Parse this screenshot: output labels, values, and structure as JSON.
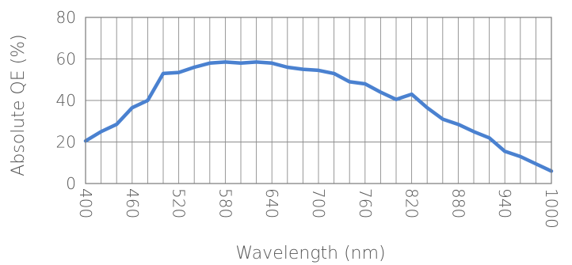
{
  "chart_data": {
    "type": "line",
    "title": "",
    "xlabel": "Wavelength (nm)",
    "ylabel": "Absolute QE (%)",
    "xlim": [
      400,
      1000
    ],
    "ylim": [
      0,
      80
    ],
    "x_ticks": [
      400,
      460,
      520,
      580,
      640,
      700,
      760,
      820,
      880,
      940,
      1000
    ],
    "x_tick_labels": [
      "400",
      "460",
      "520",
      "580",
      "640",
      "700",
      "760",
      "820",
      "880",
      "940",
      "1000"
    ],
    "y_ticks": [
      0,
      20,
      40,
      60,
      80
    ],
    "y_tick_labels": [
      "0",
      "20",
      "40",
      "60",
      "80"
    ],
    "x_grid_step": 20,
    "y_grid_step": 20,
    "grid": true,
    "legend": "none",
    "series": [
      {
        "color": "#4a81d0",
        "x": [
          400,
          420,
          440,
          460,
          480,
          500,
          520,
          540,
          560,
          580,
          600,
          620,
          640,
          660,
          680,
          700,
          720,
          740,
          760,
          780,
          800,
          820,
          840,
          860,
          880,
          900,
          920,
          940,
          960,
          980,
          1000
        ],
        "y": [
          20.5,
          25,
          28.5,
          36.5,
          40,
          53,
          53.5,
          56,
          58,
          58.5,
          58,
          58.5,
          58,
          56,
          55,
          54.5,
          53,
          49,
          48,
          44,
          40.5,
          43,
          36.5,
          31,
          28.5,
          25,
          22,
          15.5,
          13,
          9.5,
          6
        ]
      }
    ]
  }
}
